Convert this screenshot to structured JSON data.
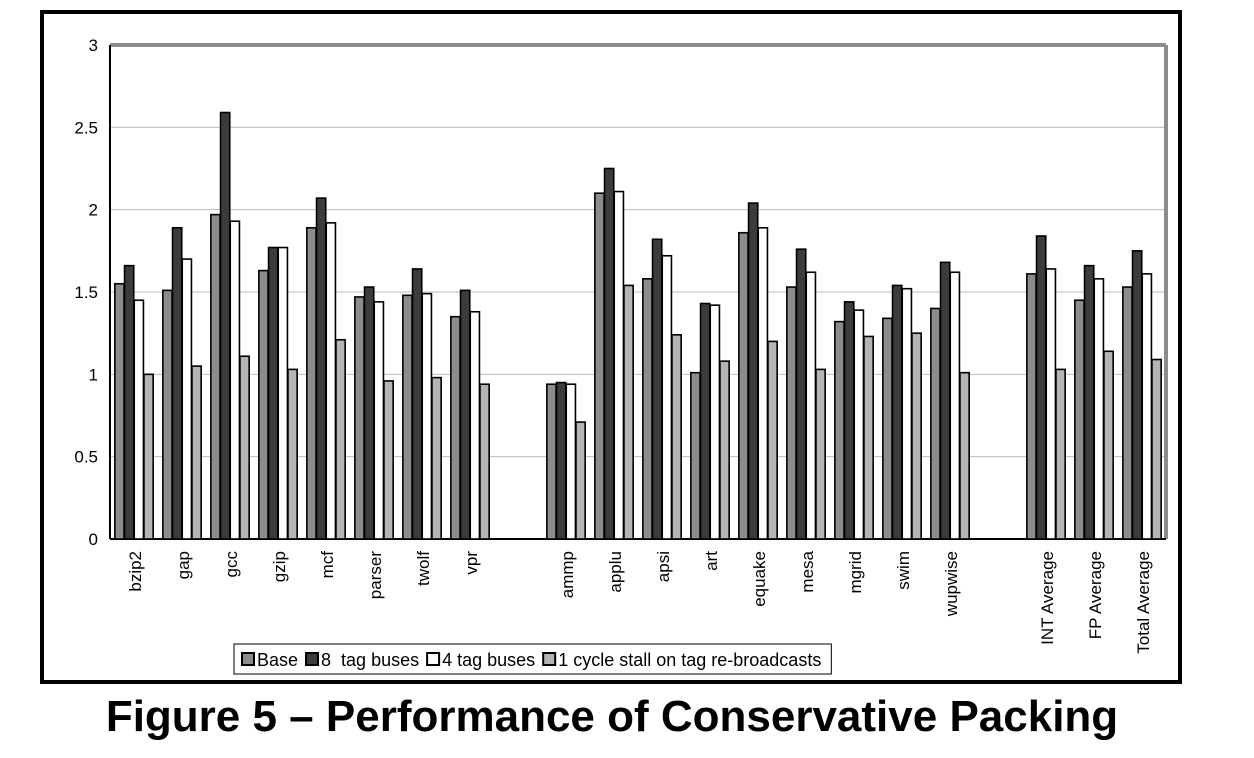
{
  "caption": "Figure 5 – Performance of Conservative Packing",
  "chart_data": {
    "type": "bar",
    "title": "",
    "xlabel": "",
    "ylabel": "",
    "ylim": [
      0,
      3
    ],
    "yticks": [
      "0",
      "0.5",
      "1",
      "1.5",
      "2",
      "2.5",
      "3"
    ],
    "grid": true,
    "legend_position": "bottom",
    "categories": [
      "bzip2",
      "gap",
      "gcc",
      "gzip",
      "mcf",
      "parser",
      "twolf",
      "vpr",
      "",
      "ammp",
      "applu",
      "apsi",
      "art",
      "equake",
      "mesa",
      "mgrid",
      "swim",
      "wupwise",
      "",
      "INT Average",
      "FP Average",
      "Total Average"
    ],
    "series": [
      {
        "name": "Base",
        "color": "#8c8c8c",
        "values": [
          1.55,
          1.51,
          1.97,
          1.63,
          1.89,
          1.47,
          1.48,
          1.35,
          null,
          0.94,
          2.1,
          1.58,
          1.01,
          1.86,
          1.53,
          1.32,
          1.34,
          1.4,
          null,
          1.61,
          1.45,
          1.53
        ]
      },
      {
        "name": "8  tag buses",
        "color": "#3c3c3c",
        "values": [
          1.66,
          1.89,
          2.59,
          1.77,
          2.07,
          1.53,
          1.64,
          1.51,
          null,
          0.95,
          2.25,
          1.82,
          1.43,
          2.04,
          1.76,
          1.44,
          1.54,
          1.68,
          null,
          1.84,
          1.66,
          1.75
        ]
      },
      {
        "name": "4 tag buses",
        "color": "#ffffff",
        "values": [
          1.45,
          1.7,
          1.93,
          1.77,
          1.92,
          1.44,
          1.49,
          1.38,
          null,
          0.94,
          2.11,
          1.72,
          1.42,
          1.89,
          1.62,
          1.39,
          1.52,
          1.62,
          null,
          1.64,
          1.58,
          1.61
        ]
      },
      {
        "name": "1 cycle stall on tag re-broadcasts",
        "color": "#b4b4b4",
        "values": [
          1.0,
          1.05,
          1.11,
          1.03,
          1.21,
          0.96,
          0.98,
          0.94,
          null,
          0.71,
          1.54,
          1.24,
          1.08,
          1.2,
          1.03,
          1.23,
          1.25,
          1.01,
          null,
          1.03,
          1.14,
          1.09
        ]
      }
    ]
  }
}
